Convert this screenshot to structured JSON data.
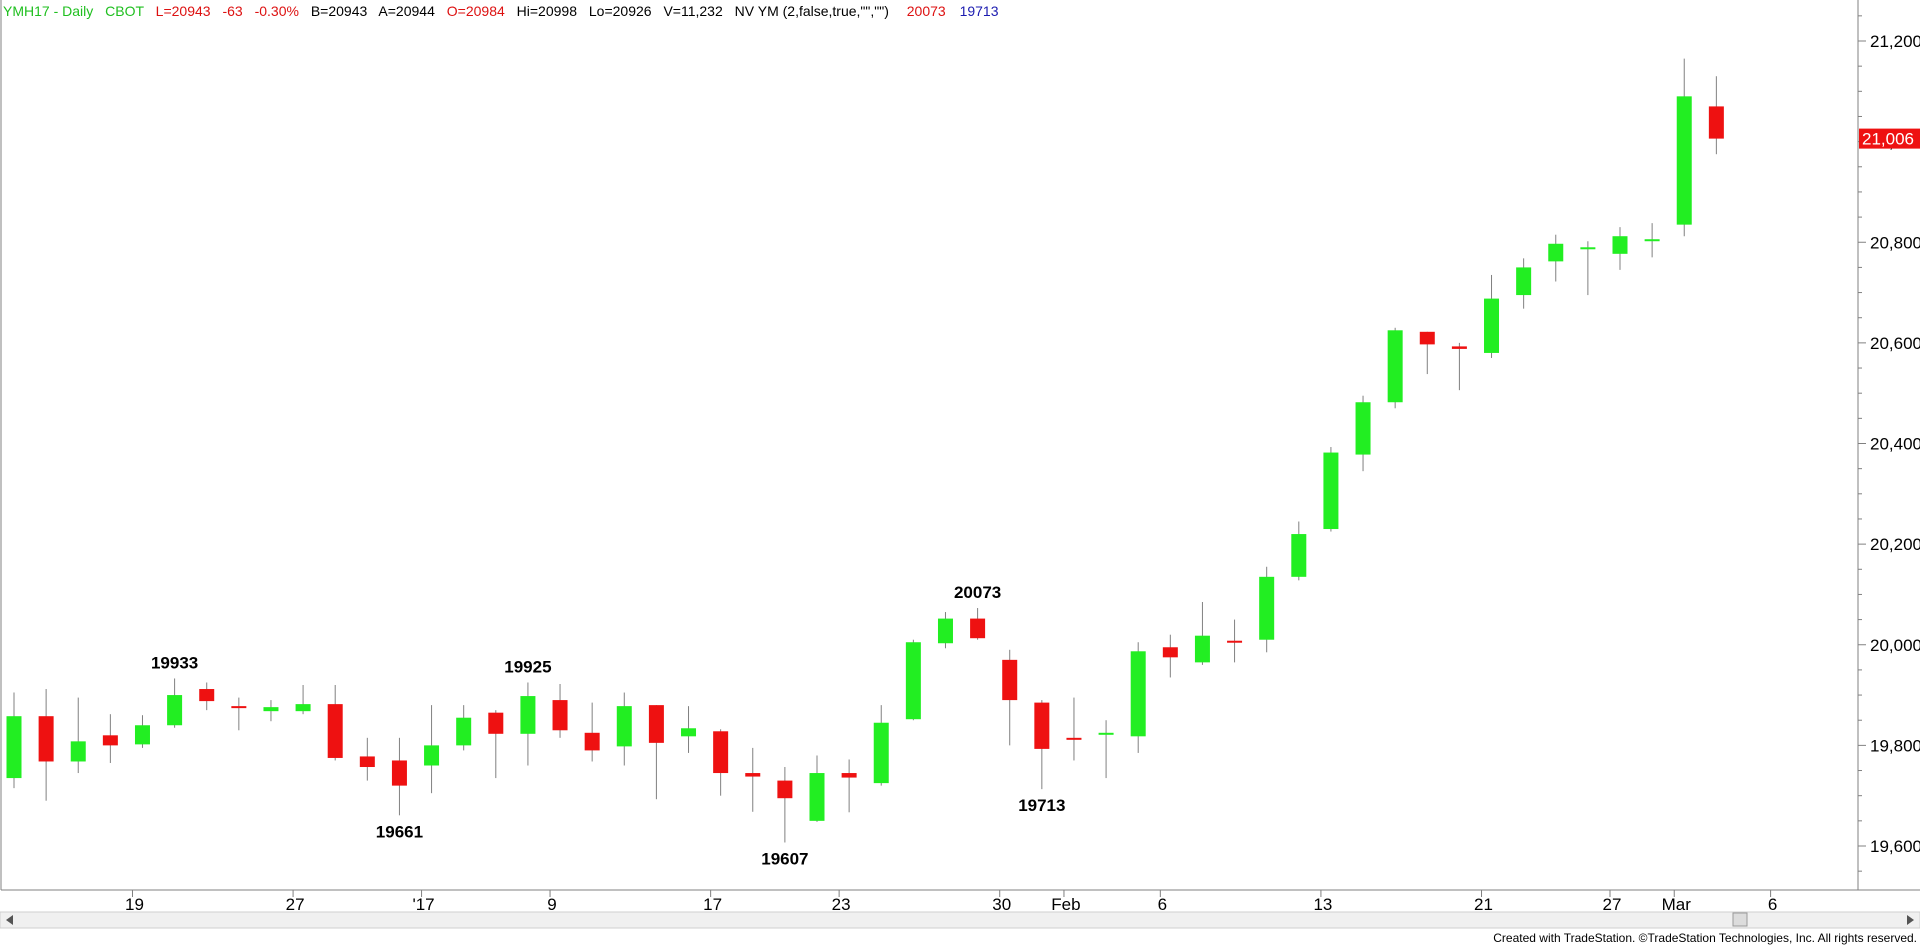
{
  "header": {
    "symbol": "YMH17 - Daily",
    "exchange": "CBOT",
    "last": "L=20943",
    "change": "-63",
    "change_pct": "-0.30%",
    "bid": "B=20943",
    "ask": "A=20944",
    "open": "O=20984",
    "high": "Hi=20998",
    "low": "Lo=20926",
    "volume": "V=11,232",
    "indicator": "NV YM (2,false,true,\"\",\"\")",
    "ind_value_1": "20073",
    "ind_value_2": "19713"
  },
  "colors": {
    "up": "#22ee22",
    "down": "#ee1111",
    "header_green": "#1fbf1f",
    "header_red": "#dd1111",
    "header_blue": "#1b1bb0",
    "wick": "#808080",
    "axis": "#808080"
  },
  "footer": {
    "credit": "Created with TradeStation. ©TradeStation Technologies, Inc. All rights reserved."
  },
  "chart_data": {
    "type": "candlestick",
    "ylim": [
      19520,
      21260
    ],
    "yticks": [
      19600,
      19800,
      20000,
      20200,
      20400,
      20600,
      20800,
      21000,
      21200
    ],
    "ytick_labels": [
      "19,600",
      "19,800",
      "20,000",
      "20,200",
      "20,400",
      "20,600",
      "20,800",
      "21,000",
      "21,200"
    ],
    "last_price": 21006,
    "last_price_label": "21,006",
    "xtick_labels": [
      {
        "label": "19",
        "index": 4
      },
      {
        "label": "27",
        "index": 9
      },
      {
        "label": "'17",
        "index": 13
      },
      {
        "label": "9",
        "index": 17
      },
      {
        "label": "17",
        "index": 22
      },
      {
        "label": "23",
        "index": 26
      },
      {
        "label": "30",
        "index": 31
      },
      {
        "label": "Feb",
        "index": 33
      },
      {
        "label": "6",
        "index": 36
      },
      {
        "label": "13",
        "index": 41
      },
      {
        "label": "21",
        "index": 46
      },
      {
        "label": "27",
        "index": 50
      },
      {
        "label": "Mar",
        "index": 52
      },
      {
        "label": "6",
        "index": 55
      }
    ],
    "candles": [
      {
        "o": 19735,
        "h": 19905,
        "l": 19715,
        "c": 19858
      },
      {
        "o": 19858,
        "h": 19912,
        "l": 19690,
        "c": 19768
      },
      {
        "o": 19768,
        "h": 19895,
        "l": 19745,
        "c": 19808
      },
      {
        "o": 19820,
        "h": 19862,
        "l": 19765,
        "c": 19800
      },
      {
        "o": 19802,
        "h": 19860,
        "l": 19795,
        "c": 19840
      },
      {
        "o": 19840,
        "h": 19933,
        "l": 19835,
        "c": 19900
      },
      {
        "o": 19912,
        "h": 19925,
        "l": 19870,
        "c": 19888
      },
      {
        "o": 19878,
        "h": 19895,
        "l": 19830,
        "c": 19875
      },
      {
        "o": 19868,
        "h": 19890,
        "l": 19848,
        "c": 19876
      },
      {
        "o": 19868,
        "h": 19920,
        "l": 19862,
        "c": 19882
      },
      {
        "o": 19882,
        "h": 19920,
        "l": 19770,
        "c": 19775
      },
      {
        "o": 19778,
        "h": 19815,
        "l": 19730,
        "c": 19757
      },
      {
        "o": 19770,
        "h": 19815,
        "l": 19661,
        "c": 19720
      },
      {
        "o": 19760,
        "h": 19880,
        "l": 19705,
        "c": 19800
      },
      {
        "o": 19800,
        "h": 19880,
        "l": 19790,
        "c": 19855
      },
      {
        "o": 19865,
        "h": 19870,
        "l": 19735,
        "c": 19823
      },
      {
        "o": 19823,
        "h": 19925,
        "l": 19760,
        "c": 19898
      },
      {
        "o": 19890,
        "h": 19922,
        "l": 19815,
        "c": 19830
      },
      {
        "o": 19825,
        "h": 19885,
        "l": 19768,
        "c": 19790
      },
      {
        "o": 19798,
        "h": 19905,
        "l": 19760,
        "c": 19878
      },
      {
        "o": 19880,
        "h": 19880,
        "l": 19693,
        "c": 19805
      },
      {
        "o": 19818,
        "h": 19878,
        "l": 19785,
        "c": 19834
      },
      {
        "o": 19828,
        "h": 19832,
        "l": 19700,
        "c": 19745
      },
      {
        "o": 19745,
        "h": 19795,
        "l": 19668,
        "c": 19738
      },
      {
        "o": 19730,
        "h": 19757,
        "l": 19607,
        "c": 19695
      },
      {
        "o": 19650,
        "h": 19780,
        "l": 19648,
        "c": 19745
      },
      {
        "o": 19745,
        "h": 19772,
        "l": 19667,
        "c": 19736
      },
      {
        "o": 19725,
        "h": 19880,
        "l": 19720,
        "c": 19845
      },
      {
        "o": 19852,
        "h": 20010,
        "l": 19850,
        "c": 20005
      },
      {
        "o": 20003,
        "h": 20065,
        "l": 19993,
        "c": 20052
      },
      {
        "o": 20052,
        "h": 20073,
        "l": 20010,
        "c": 20013
      },
      {
        "o": 19970,
        "h": 19990,
        "l": 19800,
        "c": 19890
      },
      {
        "o": 19885,
        "h": 19890,
        "l": 19713,
        "c": 19793
      },
      {
        "o": 19815,
        "h": 19895,
        "l": 19770,
        "c": 19814
      },
      {
        "o": 19822,
        "h": 19850,
        "l": 19735,
        "c": 19825
      },
      {
        "o": 19818,
        "h": 20005,
        "l": 19785,
        "c": 19987
      },
      {
        "o": 19995,
        "h": 20020,
        "l": 19935,
        "c": 19975
      },
      {
        "o": 19965,
        "h": 20085,
        "l": 19960,
        "c": 20018
      },
      {
        "o": 20008,
        "h": 20050,
        "l": 19965,
        "c": 20005
      },
      {
        "o": 20010,
        "h": 20155,
        "l": 19985,
        "c": 20135
      },
      {
        "o": 20135,
        "h": 20245,
        "l": 20128,
        "c": 20220
      },
      {
        "o": 20230,
        "h": 20393,
        "l": 20225,
        "c": 20382
      },
      {
        "o": 20378,
        "h": 20495,
        "l": 20345,
        "c": 20482
      },
      {
        "o": 20482,
        "h": 20630,
        "l": 20470,
        "c": 20625
      },
      {
        "o": 20622,
        "h": 20622,
        "l": 20538,
        "c": 20597
      },
      {
        "o": 20593,
        "h": 20600,
        "l": 20506,
        "c": 20588
      },
      {
        "o": 20580,
        "h": 20735,
        "l": 20570,
        "c": 20688
      },
      {
        "o": 20695,
        "h": 20768,
        "l": 20668,
        "c": 20750
      },
      {
        "o": 20762,
        "h": 20815,
        "l": 20722,
        "c": 20797
      },
      {
        "o": 20788,
        "h": 20802,
        "l": 20695,
        "c": 20790
      },
      {
        "o": 20777,
        "h": 20830,
        "l": 20745,
        "c": 20812
      },
      {
        "o": 20806,
        "h": 20838,
        "l": 20770,
        "c": 20806
      },
      {
        "o": 20835,
        "h": 21165,
        "l": 20812,
        "c": 21090
      },
      {
        "o": 21070,
        "h": 21130,
        "l": 20975,
        "c": 21006
      }
    ],
    "annotations": [
      {
        "text": "19933",
        "index": 5,
        "price": 19933,
        "pos": "above"
      },
      {
        "text": "19661",
        "index": 12,
        "price": 19661,
        "pos": "below"
      },
      {
        "text": "19925",
        "index": 16,
        "price": 19925,
        "pos": "above"
      },
      {
        "text": "19607",
        "index": 24,
        "price": 19607,
        "pos": "below"
      },
      {
        "text": "20073",
        "index": 30,
        "price": 20073,
        "pos": "above"
      },
      {
        "text": "19713",
        "index": 32,
        "price": 19713,
        "pos": "below"
      }
    ]
  }
}
